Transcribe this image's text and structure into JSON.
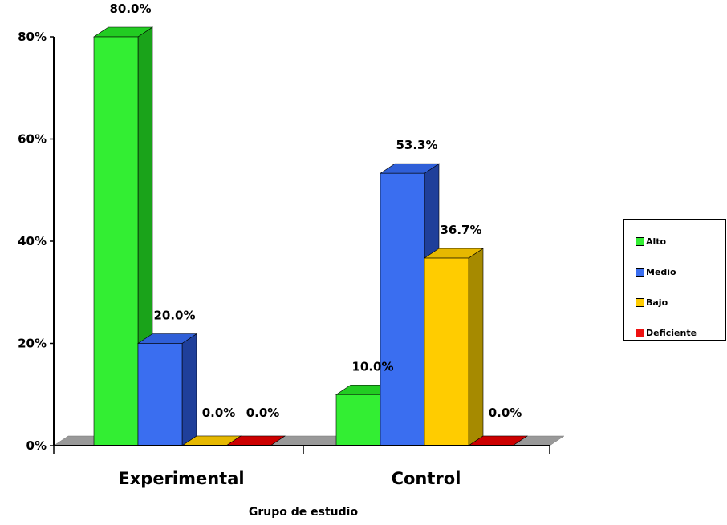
{
  "chart_data": {
    "type": "bar",
    "categories": [
      "Experimental",
      "Control"
    ],
    "series": [
      {
        "name": "Alto",
        "values": [
          80.0,
          10.0
        ],
        "color": "#33ee33",
        "side_color": "#1aa31a",
        "top_color": "#22cc22"
      },
      {
        "name": "Medio",
        "values": [
          20.0,
          53.3
        ],
        "color": "#3a6ef0",
        "side_color": "#1f3f9a",
        "top_color": "#2f5fd8"
      },
      {
        "name": "Bajo",
        "values": [
          0.0,
          36.7
        ],
        "color": "#ffcc00",
        "side_color": "#a68a00",
        "top_color": "#e6b800"
      },
      {
        "name": "Deficiente",
        "values": [
          0.0,
          0.0
        ],
        "color": "#ee1111",
        "side_color": "#990000",
        "top_color": "#cc0000"
      }
    ],
    "data_labels": [
      [
        "80.0%",
        "10.0%"
      ],
      [
        "20.0%",
        "53.3%"
      ],
      [
        "0.0%",
        "36.7%"
      ],
      [
        "0.0%",
        "0.0%"
      ]
    ],
    "y_ticks": [
      "0%",
      "20%",
      "40%",
      "60%",
      "80%"
    ],
    "y_tick_values": [
      0,
      20,
      40,
      60,
      80
    ],
    "ylim": [
      0,
      80
    ],
    "xlabel": "Grupo de estudio",
    "ylabel": "",
    "title": "",
    "grid": false,
    "legend_position": "right",
    "floor_color": "#999999"
  }
}
